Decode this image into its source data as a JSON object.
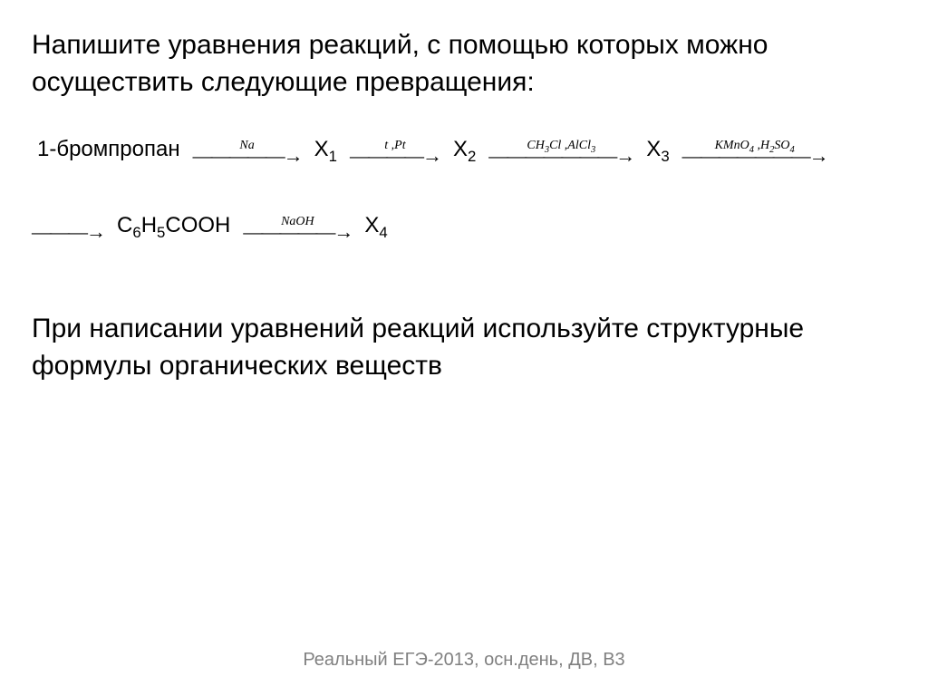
{
  "task": "Напишите уравнения реакций, с помощью которых можно осуществить следующие превращения:",
  "note": "При написании уравнений реакций используйте структурные формулы органических веществ",
  "footer": "Реальный ЕГЭ-2013, осн.день, ДВ, В3",
  "scheme": {
    "start": "1-бромпропан",
    "x1": "X",
    "x1_sub": "1",
    "x2": "X",
    "x2_sub": "2",
    "x3": "X",
    "x3_sub": "3",
    "x4": "X",
    "x4_sub": "4",
    "benzoic_html": "C<sub>6</sub>H<sub>5</sub>COOH",
    "reagents": {
      "r1_html": "Na",
      "r2_html": "t ,Pt",
      "r3_html": "CH<sub>3</sub>Cl ,AlCl<sub>3</sub>",
      "r4_html": "KMnO<sub>4</sub> ,H<sub>2</sub>SO<sub>4</sub>",
      "r5_html": "NaOH"
    },
    "arrows": {
      "long": "———————→",
      "med": "—————→",
      "short": "————→",
      "plain": "———→"
    }
  },
  "style": {
    "bg": "#ffffff",
    "text_color": "#000000",
    "footer_color": "#808080",
    "body_fontsize": 30,
    "scheme_fontsize": 24,
    "reagent_fontsize": 14,
    "footer_fontsize": 20
  }
}
